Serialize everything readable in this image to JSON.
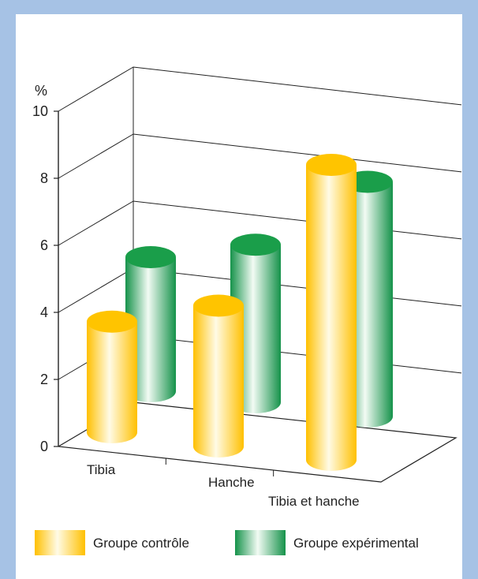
{
  "chart_data": {
    "type": "bar",
    "style": "3d-cylinder",
    "unit_label": "%",
    "categories": [
      "Tibia",
      "Hanche",
      "Tibia et hanche"
    ],
    "series": [
      {
        "name": "Groupe contrôle",
        "color": "#ffc400",
        "values": [
          3.3,
          4.2,
          8.8
        ]
      },
      {
        "name": "Groupe expérimental",
        "color": "#1a9e4a",
        "values": [
          4.0,
          4.7,
          7.0
        ]
      }
    ],
    "yticks": [
      0,
      2,
      4,
      6,
      8,
      10
    ],
    "ylim": [
      0,
      10
    ],
    "grid": true,
    "legend_position": "bottom"
  }
}
